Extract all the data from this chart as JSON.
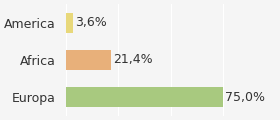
{
  "categories": [
    "America",
    "Africa",
    "Europa"
  ],
  "values": [
    3.6,
    21.4,
    75.0
  ],
  "bar_colors": [
    "#e8d87a",
    "#e8b07a",
    "#a8c97f"
  ],
  "labels": [
    "3,6%",
    "21,4%",
    "75,0%"
  ],
  "xlim": [
    0,
    100
  ],
  "background_color": "#f5f5f5",
  "label_fontsize": 9,
  "tick_fontsize": 9,
  "bar_height": 0.55,
  "grid_lines": [
    0,
    25,
    50,
    75,
    100
  ]
}
